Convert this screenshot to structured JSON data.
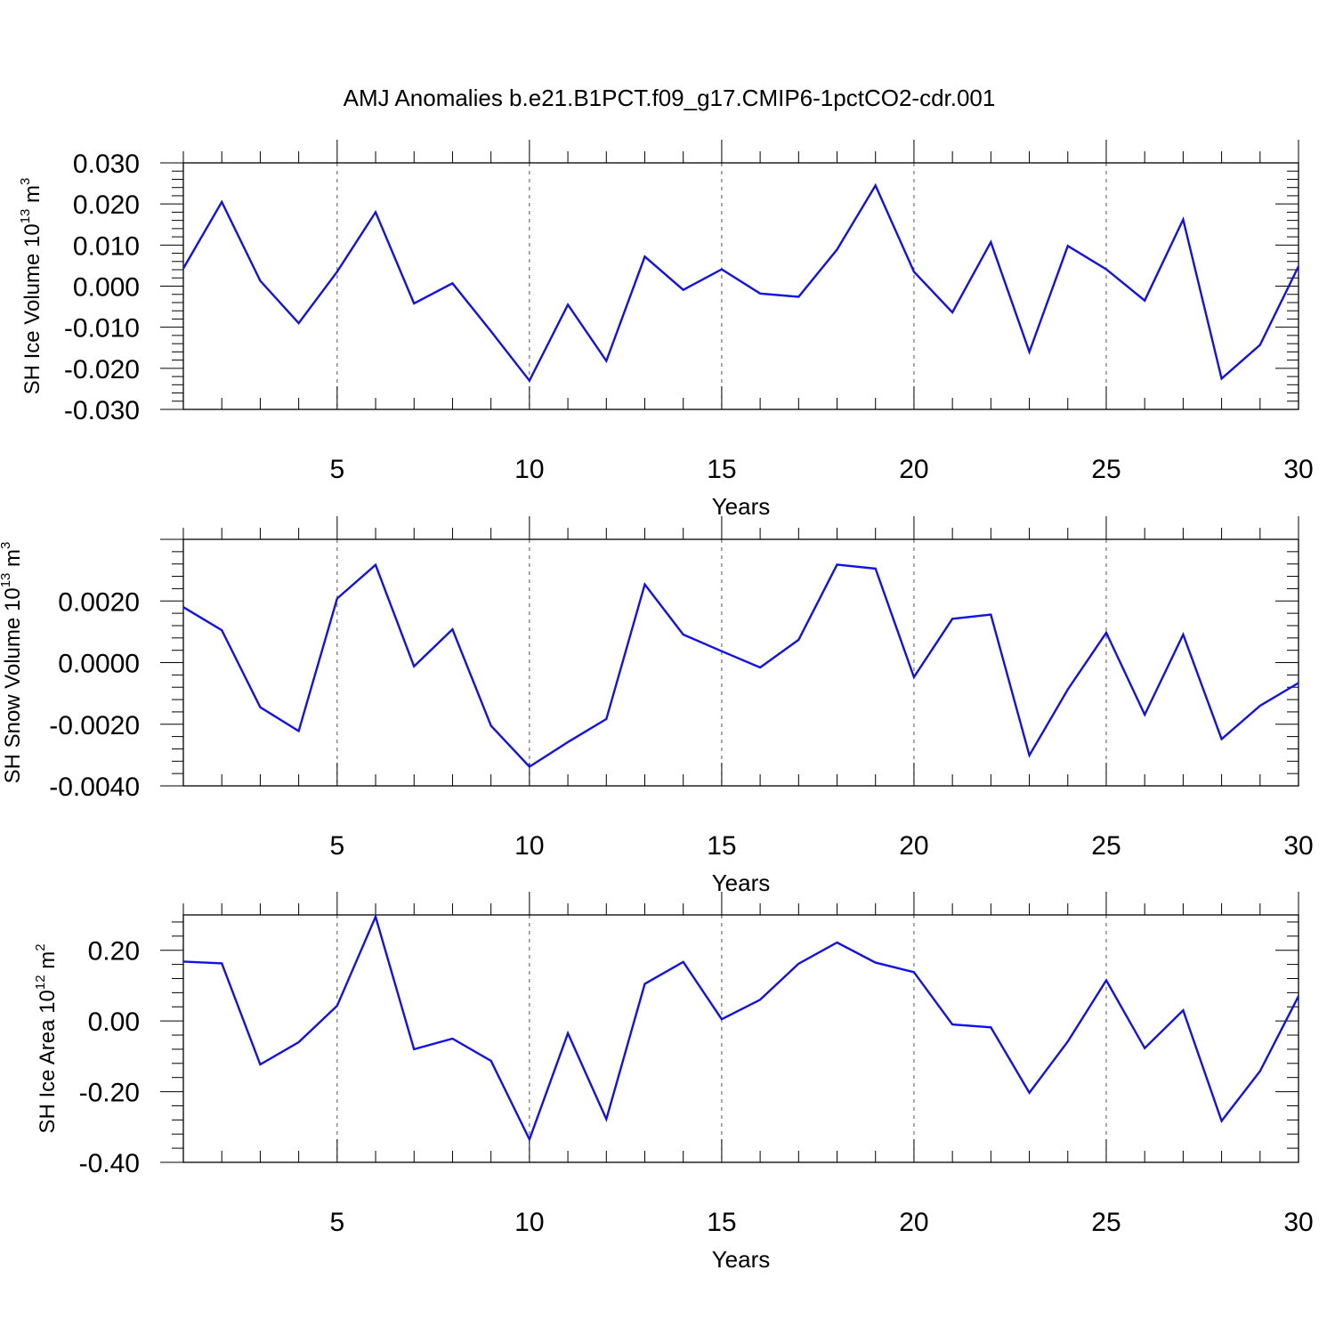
{
  "title": "AMJ Anomalies b.e21.B1PCT.f09_g17.CMIP6-1pctCO2-cdr.001",
  "colors": {
    "line": "#1010ee",
    "axes": "#000000",
    "grid": "#555555"
  },
  "chart_data": [
    {
      "type": "line",
      "ylabel": {
        "base": "SH Ice Volume 10",
        "exp": "13",
        "unit": " m",
        "unit_exp": "3"
      },
      "xlabel": "Years",
      "xlim": [
        1,
        30
      ],
      "ylim": [
        -0.03,
        0.03
      ],
      "yticks": [
        "0.030",
        "0.020",
        "0.010",
        "0.000",
        "-0.010",
        "-0.020",
        "-0.030"
      ],
      "ytick_values": [
        0.03,
        0.02,
        0.01,
        0.0,
        -0.01,
        -0.02,
        -0.03
      ],
      "xticks": [
        "5",
        "10",
        "15",
        "20",
        "25",
        "30"
      ],
      "xtick_values": [
        5,
        10,
        15,
        20,
        25,
        30
      ],
      "grid_x": [
        5,
        10,
        15,
        20,
        25
      ],
      "x": [
        1,
        2,
        3,
        4,
        5,
        6,
        7,
        8,
        9,
        10,
        11,
        12,
        13,
        14,
        15,
        16,
        17,
        18,
        19,
        20,
        21,
        22,
        23,
        24,
        25,
        26,
        27,
        28,
        29,
        30
      ],
      "values": [
        0.0043,
        0.0205,
        0.0013,
        -0.009,
        0.0035,
        0.018,
        -0.0042,
        0.0007,
        -0.011,
        -0.023,
        -0.0045,
        -0.0182,
        0.0072,
        -0.0009,
        0.0041,
        -0.0018,
        -0.0026,
        0.0089,
        0.0245,
        0.0035,
        -0.0064,
        0.0107,
        -0.016,
        0.0098,
        0.0041,
        -0.0035,
        0.0162,
        -0.0225,
        -0.0143,
        0.0048
      ]
    },
    {
      "type": "line",
      "ylabel": {
        "base": "SH Snow Volume 10",
        "exp": "13",
        "unit": " m",
        "unit_exp": "3"
      },
      "xlabel": "Years",
      "xlim": [
        1,
        30
      ],
      "ylim": [
        -0.004,
        0.004
      ],
      "yticks": [
        "0.0020",
        "0.0000",
        "-0.0020",
        "-0.0040"
      ],
      "ytick_values": [
        0.002,
        0.0,
        -0.002,
        -0.004
      ],
      "xticks": [
        "5",
        "10",
        "15",
        "20",
        "25",
        "30"
      ],
      "xtick_values": [
        5,
        10,
        15,
        20,
        25,
        30
      ],
      "grid_x": [
        5,
        10,
        15,
        20,
        25
      ],
      "x": [
        1,
        2,
        3,
        4,
        5,
        6,
        7,
        8,
        9,
        10,
        11,
        12,
        13,
        14,
        15,
        16,
        17,
        18,
        19,
        20,
        21,
        22,
        23,
        24,
        25,
        26,
        27,
        28,
        29,
        30
      ],
      "values": [
        0.0018,
        0.00105,
        -0.00145,
        -0.00222,
        0.00208,
        0.00317,
        -0.00012,
        0.00108,
        -0.00205,
        -0.00338,
        -0.00258,
        -0.00183,
        0.00254,
        0.00091,
        0.00037,
        -0.00016,
        0.00074,
        0.00318,
        0.00305,
        -0.00047,
        0.00142,
        0.00156,
        -0.00301,
        -0.00087,
        0.00097,
        -0.00169,
        0.00091,
        -0.00248,
        -0.0014,
        -0.00066
      ]
    },
    {
      "type": "line",
      "ylabel": {
        "base": "SH Ice Area 10",
        "exp": "12",
        "unit": " m",
        "unit_exp": "2"
      },
      "xlabel": "Years",
      "xlim": [
        1,
        30
      ],
      "ylim": [
        -0.4,
        0.3
      ],
      "yticks": [
        "0.20",
        "0.00",
        "-0.20",
        "-0.40"
      ],
      "ytick_values": [
        0.2,
        0.0,
        -0.2,
        -0.4
      ],
      "xticks": [
        "5",
        "10",
        "15",
        "20",
        "25",
        "30"
      ],
      "xtick_values": [
        5,
        10,
        15,
        20,
        25,
        30
      ],
      "grid_x": [
        5,
        10,
        15,
        20,
        25
      ],
      "x": [
        1,
        2,
        3,
        4,
        5,
        6,
        7,
        8,
        9,
        10,
        11,
        12,
        13,
        14,
        15,
        16,
        17,
        18,
        19,
        20,
        21,
        22,
        23,
        24,
        25,
        26,
        27,
        28,
        29,
        30
      ],
      "values": [
        0.168,
        0.163,
        -0.123,
        -0.06,
        0.043,
        0.295,
        -0.08,
        -0.05,
        -0.113,
        -0.335,
        -0.035,
        -0.278,
        0.105,
        0.167,
        0.005,
        0.06,
        0.162,
        0.222,
        0.165,
        0.138,
        -0.01,
        -0.018,
        -0.203,
        -0.058,
        0.115,
        -0.077,
        0.03,
        -0.283,
        -0.142,
        0.07
      ]
    }
  ]
}
